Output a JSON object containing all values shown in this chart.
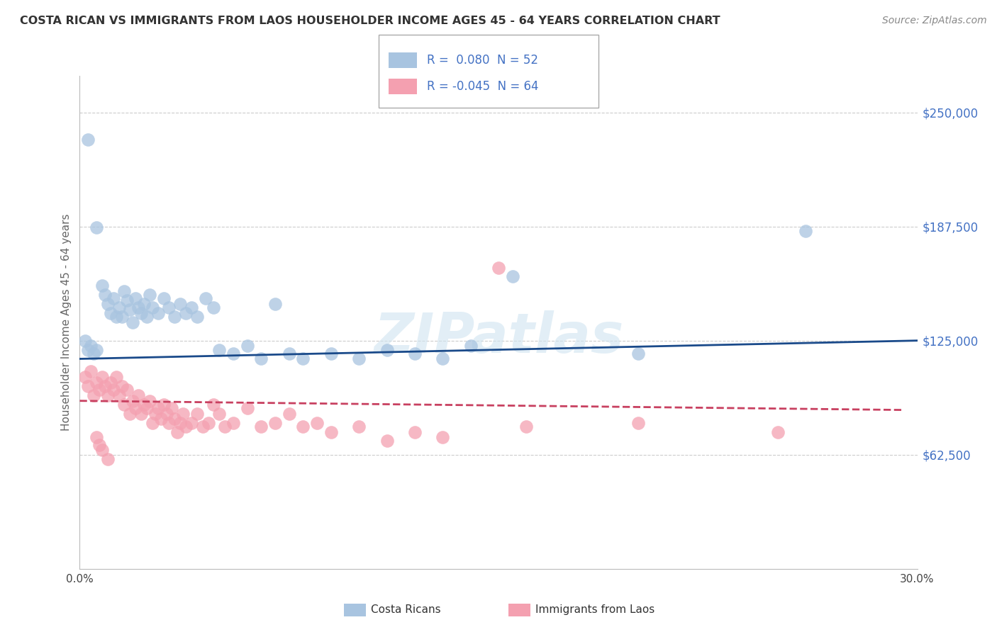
{
  "title": "COSTA RICAN VS IMMIGRANTS FROM LAOS HOUSEHOLDER INCOME AGES 45 - 64 YEARS CORRELATION CHART",
  "source": "Source: ZipAtlas.com",
  "ylabel": "Householder Income Ages 45 - 64 years",
  "xlim": [
    0.0,
    0.3
  ],
  "ylim": [
    0,
    270000
  ],
  "xticks": [
    0.0,
    0.05,
    0.1,
    0.15,
    0.2,
    0.25,
    0.3
  ],
  "xticklabels": [
    "0.0%",
    "",
    "",
    "",
    "",
    "",
    "30.0%"
  ],
  "ytick_positions": [
    62500,
    125000,
    187500,
    250000
  ],
  "ytick_labels": [
    "$62,500",
    "$125,000",
    "$187,500",
    "$250,000"
  ],
  "watermark": "ZIPatlas",
  "legend_blue_r": "0.080",
  "legend_blue_n": "52",
  "legend_pink_r": "-0.045",
  "legend_pink_n": "64",
  "blue_color": "#a8c4e0",
  "pink_color": "#f4a0b0",
  "blue_line_color": "#1a4a8a",
  "pink_line_color": "#c84060",
  "blue_scatter": [
    [
      0.003,
      235000
    ],
    [
      0.006,
      187000
    ],
    [
      0.008,
      155000
    ],
    [
      0.009,
      150000
    ],
    [
      0.01,
      145000
    ],
    [
      0.011,
      140000
    ],
    [
      0.012,
      148000
    ],
    [
      0.013,
      138000
    ],
    [
      0.014,
      143000
    ],
    [
      0.015,
      138000
    ],
    [
      0.016,
      152000
    ],
    [
      0.017,
      147000
    ],
    [
      0.018,
      142000
    ],
    [
      0.019,
      135000
    ],
    [
      0.02,
      148000
    ],
    [
      0.021,
      143000
    ],
    [
      0.022,
      140000
    ],
    [
      0.023,
      145000
    ],
    [
      0.024,
      138000
    ],
    [
      0.025,
      150000
    ],
    [
      0.026,
      143000
    ],
    [
      0.028,
      140000
    ],
    [
      0.03,
      148000
    ],
    [
      0.032,
      143000
    ],
    [
      0.034,
      138000
    ],
    [
      0.036,
      145000
    ],
    [
      0.038,
      140000
    ],
    [
      0.04,
      143000
    ],
    [
      0.042,
      138000
    ],
    [
      0.045,
      148000
    ],
    [
      0.048,
      143000
    ],
    [
      0.05,
      120000
    ],
    [
      0.055,
      118000
    ],
    [
      0.06,
      122000
    ],
    [
      0.065,
      115000
    ],
    [
      0.07,
      145000
    ],
    [
      0.075,
      118000
    ],
    [
      0.08,
      115000
    ],
    [
      0.09,
      118000
    ],
    [
      0.1,
      115000
    ],
    [
      0.11,
      120000
    ],
    [
      0.12,
      118000
    ],
    [
      0.13,
      115000
    ],
    [
      0.14,
      122000
    ],
    [
      0.155,
      160000
    ],
    [
      0.2,
      118000
    ],
    [
      0.26,
      185000
    ],
    [
      0.002,
      125000
    ],
    [
      0.003,
      120000
    ],
    [
      0.004,
      122000
    ],
    [
      0.005,
      118000
    ],
    [
      0.006,
      120000
    ]
  ],
  "pink_scatter": [
    [
      0.002,
      105000
    ],
    [
      0.003,
      100000
    ],
    [
      0.004,
      108000
    ],
    [
      0.005,
      95000
    ],
    [
      0.006,
      102000
    ],
    [
      0.007,
      98000
    ],
    [
      0.008,
      105000
    ],
    [
      0.009,
      100000
    ],
    [
      0.01,
      95000
    ],
    [
      0.011,
      102000
    ],
    [
      0.012,
      98000
    ],
    [
      0.013,
      105000
    ],
    [
      0.014,
      95000
    ],
    [
      0.015,
      100000
    ],
    [
      0.016,
      90000
    ],
    [
      0.017,
      98000
    ],
    [
      0.018,
      85000
    ],
    [
      0.019,
      92000
    ],
    [
      0.02,
      88000
    ],
    [
      0.021,
      95000
    ],
    [
      0.022,
      85000
    ],
    [
      0.023,
      90000
    ],
    [
      0.024,
      88000
    ],
    [
      0.025,
      92000
    ],
    [
      0.026,
      80000
    ],
    [
      0.027,
      85000
    ],
    [
      0.028,
      88000
    ],
    [
      0.029,
      82000
    ],
    [
      0.03,
      90000
    ],
    [
      0.031,
      85000
    ],
    [
      0.032,
      80000
    ],
    [
      0.033,
      88000
    ],
    [
      0.034,
      82000
    ],
    [
      0.035,
      75000
    ],
    [
      0.036,
      80000
    ],
    [
      0.037,
      85000
    ],
    [
      0.038,
      78000
    ],
    [
      0.04,
      80000
    ],
    [
      0.042,
      85000
    ],
    [
      0.044,
      78000
    ],
    [
      0.046,
      80000
    ],
    [
      0.048,
      90000
    ],
    [
      0.05,
      85000
    ],
    [
      0.052,
      78000
    ],
    [
      0.055,
      80000
    ],
    [
      0.06,
      88000
    ],
    [
      0.065,
      78000
    ],
    [
      0.07,
      80000
    ],
    [
      0.075,
      85000
    ],
    [
      0.08,
      78000
    ],
    [
      0.085,
      80000
    ],
    [
      0.09,
      75000
    ],
    [
      0.1,
      78000
    ],
    [
      0.11,
      70000
    ],
    [
      0.12,
      75000
    ],
    [
      0.13,
      72000
    ],
    [
      0.15,
      165000
    ],
    [
      0.16,
      78000
    ],
    [
      0.2,
      80000
    ],
    [
      0.25,
      75000
    ],
    [
      0.006,
      72000
    ],
    [
      0.007,
      68000
    ],
    [
      0.008,
      65000
    ],
    [
      0.01,
      60000
    ]
  ],
  "blue_trend_x": [
    0.0,
    0.3
  ],
  "blue_trend_y": [
    115000,
    125000
  ],
  "pink_trend_x": [
    0.0,
    0.295
  ],
  "pink_trend_y": [
    92000,
    87000
  ],
  "grid_color": "#cccccc",
  "background_color": "#ffffff",
  "title_color": "#333333",
  "source_color": "#888888",
  "axis_label_color": "#666666",
  "tick_label_color_y": "#4472c4",
  "tick_label_color_x": "#444444"
}
